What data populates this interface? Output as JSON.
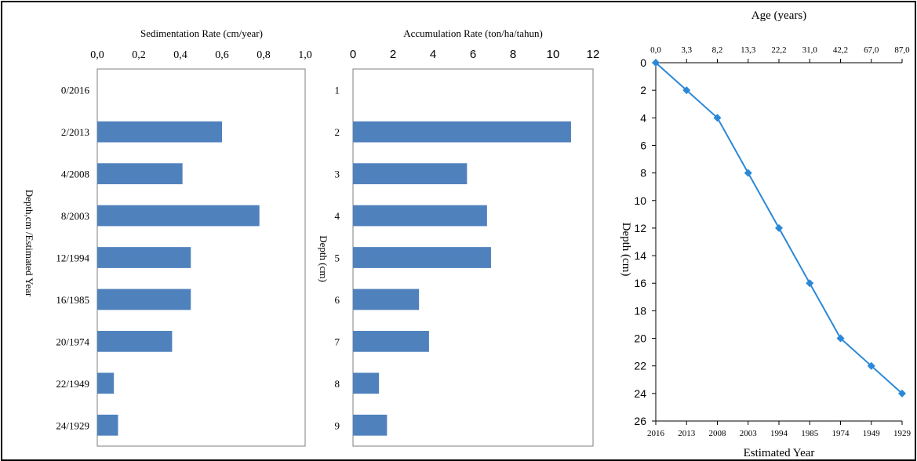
{
  "chart_data": [
    {
      "type": "bar",
      "orientation": "horizontal",
      "title": "Sedimentation Rate (cm/year)",
      "xlabel": "Sedimentation Rate (cm/year)",
      "ylabel": "Depth,cm /Estimated Year",
      "x_ticks": [
        "0,0",
        "0,2",
        "0,4",
        "0,6",
        "0,8",
        "1,0"
      ],
      "xlim": [
        0,
        1.0
      ],
      "categories": [
        "0/2016",
        "2/2013",
        "4/2008",
        "8/2003",
        "12/1994",
        "16/1985",
        "20/1974",
        "22/1949",
        "24/1929"
      ],
      "values": [
        0,
        0.6,
        0.41,
        0.78,
        0.45,
        0.45,
        0.36,
        0.08,
        0.1
      ],
      "bar_color": "#4f81bd",
      "grid": false
    },
    {
      "type": "bar",
      "orientation": "horizontal",
      "title": "Accumulation Rate (ton/ha/tahun)",
      "xlabel": "Accumulation Rate (ton/ha/tahun)",
      "ylabel": "Depth (cm)",
      "x_ticks": [
        "0",
        "2",
        "4",
        "6",
        "8",
        "10",
        "12"
      ],
      "xlim": [
        0,
        12
      ],
      "categories": [
        "1",
        "2",
        "3",
        "4",
        "5",
        "6",
        "7",
        "8",
        "9"
      ],
      "values": [
        0,
        10.9,
        5.7,
        6.7,
        6.9,
        3.3,
        3.8,
        1.3,
        1.7
      ],
      "bar_color": "#4f81bd",
      "grid": false
    },
    {
      "type": "line",
      "title": "Age (years)",
      "top_axis_label": "Age (years)",
      "top_ticks": [
        "0,0",
        "3,3",
        "8,2",
        "13,3",
        "22,2",
        "31,0",
        "42,2",
        "67,0",
        "87,0"
      ],
      "xlabel": "Estimated Year",
      "ylabel": "Depth (cm)",
      "x": [
        "2016",
        "2013",
        "2008",
        "2003",
        "1994",
        "1985",
        "1974",
        "1949",
        "1929"
      ],
      "y": [
        0,
        2,
        4,
        8,
        12,
        16,
        20,
        22,
        24
      ],
      "y_ticks": [
        "0",
        "2",
        "4",
        "6",
        "8",
        "10",
        "12",
        "14",
        "16",
        "18",
        "20",
        "22",
        "24",
        "26"
      ],
      "ylim": [
        0,
        26
      ],
      "y_inverted": true,
      "line_color": "#2b88d8",
      "marker": "diamond",
      "grid": false
    }
  ]
}
